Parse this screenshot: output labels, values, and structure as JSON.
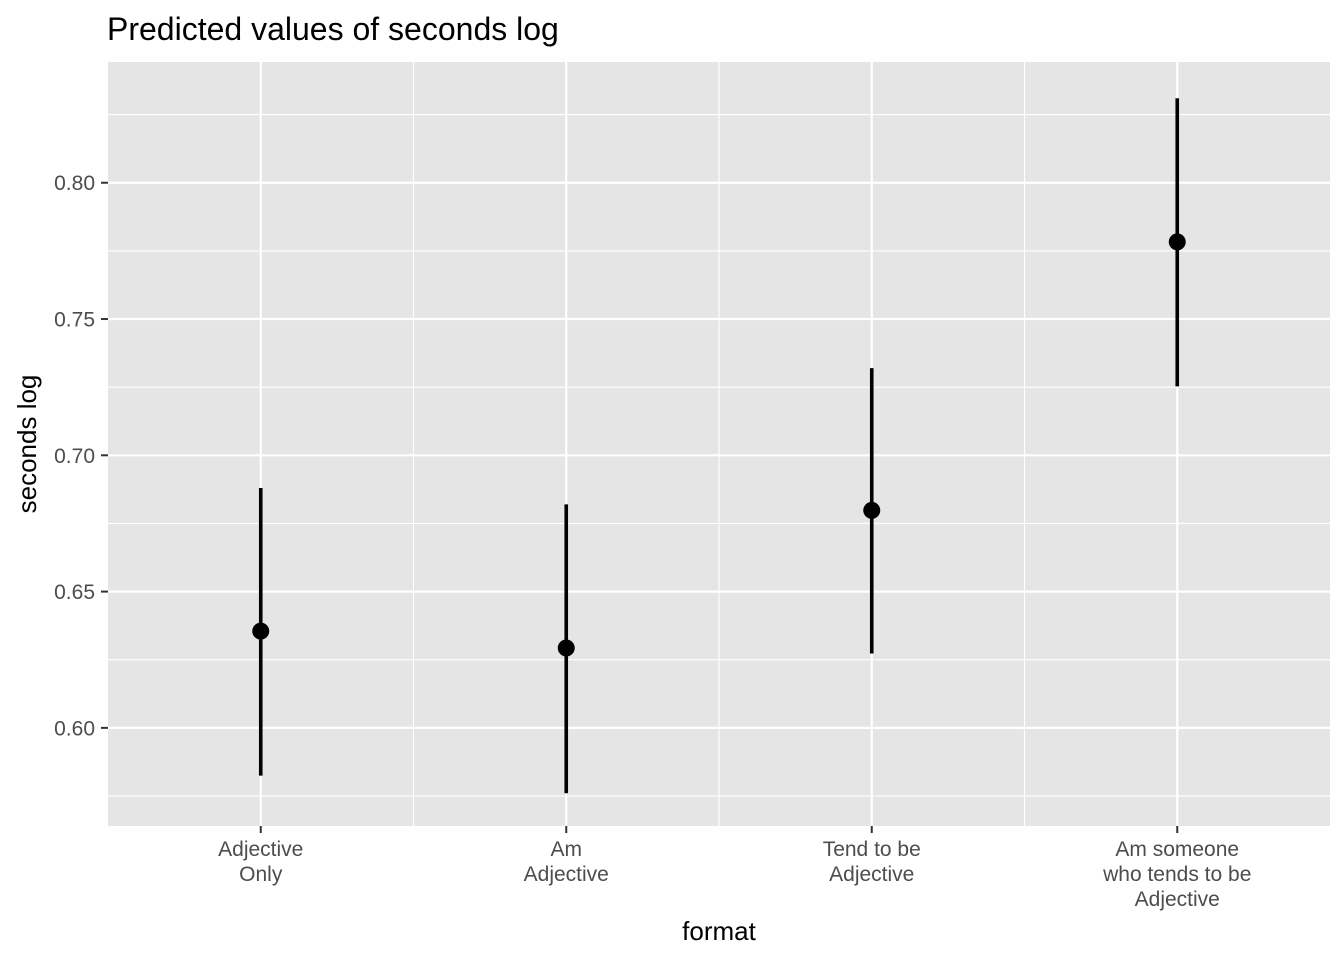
{
  "chart_data": {
    "type": "scatter",
    "title": "Predicted values of seconds log",
    "xlabel": "format",
    "ylabel": "seconds log",
    "categories": [
      [
        "Adjective",
        "Only"
      ],
      [
        "Am",
        "Adjective"
      ],
      [
        "Tend to be",
        "Adjective"
      ],
      [
        "Am someone",
        "who tends to be",
        "Adjective"
      ]
    ],
    "series": [
      {
        "points": [
          {
            "category": 0,
            "estimate": 0.6355,
            "ci_low": 0.5825,
            "ci_high": 0.688
          },
          {
            "category": 1,
            "estimate": 0.6293,
            "ci_low": 0.576,
            "ci_high": 0.682
          },
          {
            "category": 2,
            "estimate": 0.6798,
            "ci_low": 0.6273,
            "ci_high": 0.732
          },
          {
            "category": 3,
            "estimate": 0.7783,
            "ci_low": 0.7253,
            "ci_high": 0.831
          }
        ]
      }
    ],
    "yticks": [
      "0.60",
      "0.65",
      "0.70",
      "0.75",
      "0.80"
    ],
    "ylim": [
      0.564,
      0.8443
    ],
    "grid": true,
    "colors": {
      "panel_background": "#e5e5e5",
      "grid": "#ffffff",
      "marks": "#000000",
      "tick_text": "#4d4d4d"
    }
  }
}
